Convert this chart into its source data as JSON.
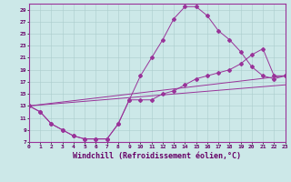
{
  "xlabel": "Windchill (Refroidissement éolien,°C)",
  "background_color": "#cce8e8",
  "grid_color": "#aacccc",
  "line_color": "#993399",
  "xlim": [
    0,
    23
  ],
  "ylim": [
    7,
    30
  ],
  "xticks": [
    0,
    1,
    2,
    3,
    4,
    5,
    6,
    7,
    8,
    9,
    10,
    11,
    12,
    13,
    14,
    15,
    16,
    17,
    18,
    19,
    20,
    21,
    22,
    23
  ],
  "yticks": [
    7,
    9,
    11,
    13,
    15,
    17,
    19,
    21,
    23,
    25,
    27,
    29
  ],
  "line1_x": [
    0,
    1,
    2,
    3,
    4,
    5,
    6,
    7,
    8,
    9,
    10,
    11,
    12,
    13,
    14,
    15,
    16,
    17,
    18,
    19,
    20,
    21,
    22,
    23
  ],
  "line1_y": [
    13,
    12,
    10,
    9,
    8,
    7.5,
    7.5,
    7.5,
    10,
    14,
    18,
    21,
    24,
    27.5,
    29.5,
    29.5,
    28,
    25.5,
    24,
    22,
    19.5,
    18,
    17.5,
    18
  ],
  "line2_x": [
    0,
    1,
    2,
    3,
    4,
    5,
    6,
    7,
    8,
    9,
    10,
    11,
    12,
    13,
    14,
    15,
    16,
    17,
    18,
    19,
    20,
    21,
    22,
    23
  ],
  "line2_y": [
    13,
    12,
    10,
    9,
    8,
    7.5,
    7.5,
    7.5,
    10,
    14,
    14,
    14,
    15,
    15.5,
    16.5,
    17.5,
    18,
    18.5,
    19,
    20,
    21.5,
    22.5,
    18,
    18
  ],
  "line3_x": [
    0,
    23
  ],
  "line3_y": [
    13,
    18
  ],
  "line4_x": [
    0,
    23
  ],
  "line4_y": [
    13,
    16.5
  ],
  "tick_fontsize": 4.5,
  "label_fontsize": 6.0
}
